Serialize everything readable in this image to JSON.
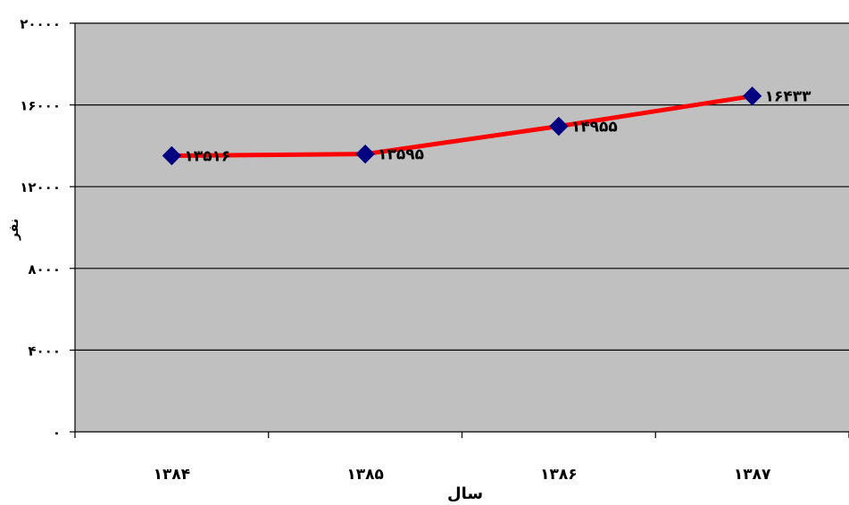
{
  "chart_data": {
    "type": "line",
    "categories": [
      "۱۳۸۴",
      "۱۳۸۵",
      "۱۳۸۶",
      "۱۳۸۷"
    ],
    "values": [
      13516,
      13595,
      14955,
      16433
    ],
    "data_labels": [
      "۱۳۵۱۶",
      "۱۳۵۹۵",
      "۱۴۹۵۵",
      "۱۶۴۳۳"
    ],
    "title": "",
    "xlabel": "سال",
    "ylabel": "نفر",
    "ylim": [
      0,
      20000
    ],
    "y_ticks": [
      0,
      4000,
      8000,
      12000,
      16000,
      20000
    ],
    "y_tick_labels": [
      "۰",
      "۴۰۰۰",
      "۸۰۰۰",
      "۱۲۰۰۰",
      "۱۶۰۰۰",
      "۲۰۰۰۰"
    ],
    "grid": true,
    "legend": "none",
    "colors": {
      "plot_background": "#c0c0c0",
      "line": "#ff0000",
      "marker": "#000080",
      "gridline": "#000000",
      "text": "#000000"
    }
  }
}
